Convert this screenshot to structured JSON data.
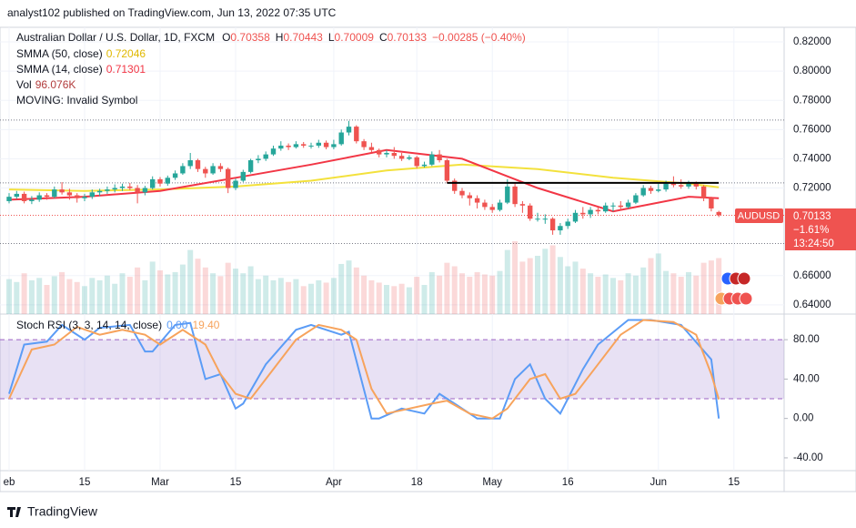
{
  "chart_data": {
    "type": "candlestick",
    "published": "analyst102 published on TradingView.com, Jun 13, 2022 07:35 UTC",
    "symbol": "Australian Dollar / U.S. Dollar, 1D, FXCM",
    "ohlc_header": [
      {
        "key": "O",
        "value": "0.70358"
      },
      {
        "key": "H",
        "value": "0.70443"
      },
      {
        "key": "L",
        "value": "0.70009"
      },
      {
        "key": "C",
        "value": "0.70133"
      }
    ],
    "change": "−0.00285 (−0.40%)",
    "indicators": [
      {
        "name": "SMMA (50, close)",
        "value": "0.72046"
      },
      {
        "name": "SMMA (14, close)",
        "value": "0.71301"
      },
      {
        "name": "Vol",
        "value": "96.076K"
      },
      {
        "name": "MOVING: Invalid Symbol"
      }
    ],
    "price_tag": {
      "symbol": "AUDUSD",
      "price": "0.70133",
      "change": "−1.61%",
      "countdown": "13:24:50"
    },
    "footer": "TradingView",
    "ylim": [
      0.6337,
      0.83
    ],
    "yticks": [
      {
        "value": 0.82,
        "label": "0.82000"
      },
      {
        "value": 0.8,
        "label": "0.80000"
      },
      {
        "value": 0.78,
        "label": "0.78000"
      },
      {
        "value": 0.76,
        "label": "0.76000"
      },
      {
        "value": 0.74,
        "label": "0.74000"
      },
      {
        "value": 0.72,
        "label": "0.72000"
      },
      {
        "value": 0.66,
        "label": "0.66000"
      },
      {
        "value": 0.64,
        "label": "0.64000"
      }
    ],
    "xticks": [
      {
        "value": 0,
        "label": "eb"
      },
      {
        "value": 10,
        "label": "15"
      },
      {
        "value": 20,
        "label": "Mar"
      },
      {
        "value": 30,
        "label": "15"
      },
      {
        "value": 43,
        "label": "Apr"
      },
      {
        "value": 54,
        "label": "18"
      },
      {
        "value": 64,
        "label": "May"
      },
      {
        "value": 74,
        "label": "16"
      },
      {
        "value": 86,
        "label": "Jun"
      },
      {
        "value": 96,
        "label": "15"
      }
    ],
    "up_color": "#26a69a",
    "down_color": "#ef5350",
    "candles": [
      [
        0.711,
        0.7165,
        0.7095,
        0.714
      ],
      [
        0.714,
        0.718,
        0.7125,
        0.716
      ],
      [
        0.716,
        0.7175,
        0.7095,
        0.711
      ],
      [
        0.711,
        0.7145,
        0.709,
        0.712
      ],
      [
        0.712,
        0.717,
        0.7105,
        0.715
      ],
      [
        0.715,
        0.7165,
        0.712,
        0.714
      ],
      [
        0.714,
        0.721,
        0.713,
        0.719
      ],
      [
        0.719,
        0.724,
        0.7155,
        0.717
      ],
      [
        0.717,
        0.7195,
        0.712,
        0.715
      ],
      [
        0.715,
        0.7165,
        0.71,
        0.713
      ],
      [
        0.713,
        0.716,
        0.711,
        0.714
      ],
      [
        0.714,
        0.719,
        0.7125,
        0.717
      ],
      [
        0.717,
        0.7195,
        0.7145,
        0.718
      ],
      [
        0.718,
        0.721,
        0.716,
        0.719
      ],
      [
        0.719,
        0.7225,
        0.717,
        0.72
      ],
      [
        0.72,
        0.723,
        0.718,
        0.721
      ],
      [
        0.721,
        0.7235,
        0.7185,
        0.72
      ],
      [
        0.72,
        0.722,
        0.7095,
        0.717
      ],
      [
        0.717,
        0.7215,
        0.715,
        0.72
      ],
      [
        0.72,
        0.728,
        0.719,
        0.726
      ],
      [
        0.726,
        0.7275,
        0.721,
        0.723
      ],
      [
        0.723,
        0.7285,
        0.7215,
        0.727
      ],
      [
        0.727,
        0.732,
        0.7255,
        0.73
      ],
      [
        0.73,
        0.737,
        0.729,
        0.735
      ],
      [
        0.735,
        0.744,
        0.733,
        0.739
      ],
      [
        0.739,
        0.74,
        0.731,
        0.733
      ],
      [
        0.733,
        0.7345,
        0.727,
        0.73
      ],
      [
        0.73,
        0.737,
        0.729,
        0.735
      ],
      [
        0.735,
        0.737,
        0.731,
        0.733
      ],
      [
        0.733,
        0.734,
        0.7165,
        0.72
      ],
      [
        0.72,
        0.7265,
        0.7185,
        0.725
      ],
      [
        0.725,
        0.7325,
        0.724,
        0.731
      ],
      [
        0.731,
        0.74,
        0.73,
        0.739
      ],
      [
        0.739,
        0.7425,
        0.737,
        0.74
      ],
      [
        0.74,
        0.745,
        0.7385,
        0.743
      ],
      [
        0.743,
        0.749,
        0.742,
        0.747
      ],
      [
        0.747,
        0.752,
        0.7455,
        0.749
      ],
      [
        0.749,
        0.7505,
        0.746,
        0.748
      ],
      [
        0.748,
        0.752,
        0.747,
        0.75
      ],
      [
        0.75,
        0.7515,
        0.7475,
        0.749
      ],
      [
        0.749,
        0.751,
        0.747,
        0.749
      ],
      [
        0.749,
        0.753,
        0.7475,
        0.751
      ],
      [
        0.751,
        0.7525,
        0.7465,
        0.748
      ],
      [
        0.748,
        0.753,
        0.7465,
        0.75
      ],
      [
        0.75,
        0.76,
        0.749,
        0.758
      ],
      [
        0.758,
        0.766,
        0.756,
        0.762
      ],
      [
        0.762,
        0.763,
        0.7505,
        0.752
      ],
      [
        0.752,
        0.7535,
        0.746,
        0.748
      ],
      [
        0.748,
        0.751,
        0.7445,
        0.746
      ],
      [
        0.746,
        0.747,
        0.741,
        0.743
      ],
      [
        0.743,
        0.746,
        0.741,
        0.744
      ],
      [
        0.744,
        0.748,
        0.74,
        0.742
      ],
      [
        0.742,
        0.744,
        0.7385,
        0.74
      ],
      [
        0.74,
        0.7425,
        0.739,
        0.741
      ],
      [
        0.741,
        0.742,
        0.7335,
        0.735
      ],
      [
        0.735,
        0.738,
        0.734,
        0.736
      ],
      [
        0.736,
        0.745,
        0.735,
        0.743
      ],
      [
        0.743,
        0.746,
        0.7375,
        0.739
      ],
      [
        0.739,
        0.74,
        0.7235,
        0.725
      ],
      [
        0.725,
        0.7265,
        0.716,
        0.718
      ],
      [
        0.718,
        0.72,
        0.713,
        0.715
      ],
      [
        0.715,
        0.717,
        0.708,
        0.713
      ],
      [
        0.713,
        0.715,
        0.706,
        0.71
      ],
      [
        0.71,
        0.712,
        0.705,
        0.707
      ],
      [
        0.707,
        0.709,
        0.703,
        0.705
      ],
      [
        0.705,
        0.712,
        0.704,
        0.71
      ],
      [
        0.71,
        0.726,
        0.709,
        0.721
      ],
      [
        0.721,
        0.723,
        0.707,
        0.709
      ],
      [
        0.709,
        0.711,
        0.703,
        0.708
      ],
      [
        0.708,
        0.7095,
        0.6975,
        0.699
      ],
      [
        0.699,
        0.703,
        0.697,
        0.699
      ],
      [
        0.699,
        0.702,
        0.6955,
        0.699
      ],
      [
        0.699,
        0.7,
        0.688,
        0.691
      ],
      [
        0.691,
        0.696,
        0.688,
        0.694
      ],
      [
        0.694,
        0.699,
        0.692,
        0.697
      ],
      [
        0.697,
        0.705,
        0.696,
        0.703
      ],
      [
        0.703,
        0.707,
        0.699,
        0.702
      ],
      [
        0.702,
        0.707,
        0.6995,
        0.705
      ],
      [
        0.705,
        0.707,
        0.702,
        0.704
      ],
      [
        0.704,
        0.71,
        0.703,
        0.708
      ],
      [
        0.708,
        0.71,
        0.704,
        0.708
      ],
      [
        0.708,
        0.711,
        0.705,
        0.707
      ],
      [
        0.707,
        0.712,
        0.706,
        0.71
      ],
      [
        0.71,
        0.7165,
        0.709,
        0.715
      ],
      [
        0.715,
        0.722,
        0.714,
        0.72
      ],
      [
        0.72,
        0.7215,
        0.716,
        0.718
      ],
      [
        0.718,
        0.723,
        0.717,
        0.719
      ],
      [
        0.719,
        0.725,
        0.7175,
        0.723
      ],
      [
        0.723,
        0.728,
        0.7205,
        0.722
      ],
      [
        0.722,
        0.726,
        0.7195,
        0.721
      ],
      [
        0.721,
        0.725,
        0.7195,
        0.723
      ],
      [
        0.723,
        0.7245,
        0.719,
        0.721
      ],
      [
        0.721,
        0.722,
        0.711,
        0.713
      ],
      [
        0.713,
        0.714,
        0.704,
        0.706
      ],
      [
        0.70358,
        0.70443,
        0.70009,
        0.70133
      ]
    ],
    "volume": [
      60,
      55,
      70,
      58,
      62,
      50,
      65,
      72,
      60,
      55,
      48,
      62,
      58,
      66,
      52,
      70,
      64,
      80,
      58,
      90,
      75,
      68,
      72,
      85,
      110,
      95,
      80,
      70,
      65,
      88,
      78,
      70,
      82,
      60,
      66,
      58,
      62,
      55,
      60,
      48,
      52,
      58,
      54,
      62,
      86,
      92,
      80,
      66,
      58,
      54,
      50,
      48,
      52,
      46,
      64,
      50,
      72,
      66,
      88,
      82,
      70,
      64,
      72,
      68,
      66,
      74,
      110,
      125,
      90,
      96,
      100,
      112,
      118,
      98,
      82,
      90,
      78,
      70,
      64,
      68,
      62,
      58,
      70,
      66,
      80,
      96,
      104,
      74,
      70,
      64,
      72,
      66,
      88,
      92,
      96.076
    ],
    "series": [
      {
        "name": "SMMA (50, close)",
        "color": "#f3e13c",
        "x": [
          0,
          10,
          20,
          30,
          40,
          50,
          60,
          70,
          80,
          90,
          94
        ],
        "values": [
          0.719,
          0.718,
          0.719,
          0.721,
          0.725,
          0.732,
          0.736,
          0.733,
          0.727,
          0.723,
          0.72046
        ]
      },
      {
        "name": "SMMA (14, close)",
        "color": "#f23645",
        "x": [
          0,
          10,
          20,
          30,
          40,
          50,
          60,
          70,
          80,
          90,
          94
        ],
        "values": [
          0.712,
          0.714,
          0.718,
          0.727,
          0.736,
          0.746,
          0.74,
          0.72,
          0.704,
          0.714,
          0.71301
        ]
      }
    ],
    "resistance": {
      "start": 58,
      "end": 94,
      "value": 0.7235
    },
    "price_lines": [
      0.7665,
      0.7235,
      0.682
    ],
    "stoch": {
      "title": "Stoch RSI (3, 3, 14, 14, close)",
      "ylim": [
        -53,
        106
      ],
      "yticks": [
        {
          "value": 80,
          "label": "80.00"
        },
        {
          "value": 40,
          "label": "40.00"
        },
        {
          "value": 0,
          "label": "0.00"
        },
        {
          "value": -40,
          "label": "-40.00"
        }
      ],
      "band": [
        20,
        80
      ],
      "series": [
        {
          "color": "#5b9cf6",
          "value_label": "0.00",
          "x": [
            0,
            2,
            5,
            7,
            10,
            12,
            16,
            18,
            19,
            22,
            24,
            26,
            28,
            30,
            31,
            34,
            38,
            40,
            44,
            45,
            48,
            49,
            52,
            55,
            57,
            59,
            62,
            65,
            67,
            69,
            71,
            73,
            76,
            78,
            82,
            85,
            89,
            93,
            94
          ],
          "values": [
            25,
            75,
            78,
            95,
            80,
            92,
            95,
            68,
            68,
            95,
            97,
            40,
            45,
            10,
            15,
            55,
            90,
            95,
            85,
            88,
            0,
            0,
            10,
            5,
            25,
            15,
            0,
            0,
            40,
            55,
            20,
            5,
            50,
            75,
            100,
            100,
            95,
            60,
            0
          ]
        },
        {
          "color": "#f7a35c",
          "value_label": "19.40",
          "x": [
            0,
            3,
            6,
            9,
            12,
            15,
            18,
            20,
            23,
            26,
            28,
            30,
            32,
            34,
            38,
            41,
            44,
            46,
            48,
            50,
            53,
            56,
            58,
            61,
            64,
            66,
            69,
            71,
            73,
            75,
            78,
            81,
            84,
            88,
            91,
            93,
            94
          ],
          "values": [
            20,
            70,
            75,
            93,
            85,
            90,
            85,
            75,
            90,
            75,
            45,
            25,
            20,
            40,
            80,
            95,
            90,
            80,
            30,
            5,
            10,
            15,
            18,
            5,
            0,
            10,
            40,
            45,
            20,
            25,
            55,
            85,
            100,
            98,
            85,
            45,
            19.4
          ]
        }
      ]
    }
  }
}
